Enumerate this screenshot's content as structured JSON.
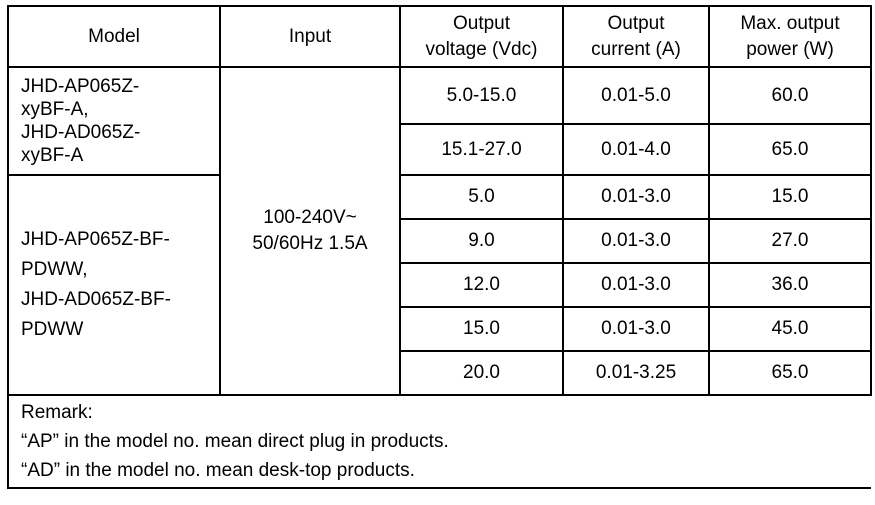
{
  "headers": [
    "Model",
    "Input",
    "Output voltage (Vdc)",
    "Output current (A)",
    "Max. output power (W)"
  ],
  "groups": [
    {
      "model": "JHD-AP065Z-xyBF-A, JHD-AD065Z-xyBF-A",
      "model_lines": [
        "JHD-AP065Z-",
        "xyBF-A,",
        "JHD-AD065Z-",
        "xyBF-A"
      ],
      "rows": [
        {
          "voltage": "5.0-15.0",
          "current": "0.01-5.0",
          "power": "60.0"
        },
        {
          "voltage": "15.1-27.0",
          "current": "0.01-4.0",
          "power": "65.0"
        }
      ]
    },
    {
      "model": "JHD-AP065Z-BF-PDWW, JHD-AD065Z-BF-PDWW",
      "model_lines": [
        "JHD-AP065Z-BF-",
        "PDWW,",
        "JHD-AD065Z-BF-",
        "PDWW"
      ],
      "rows": [
        {
          "voltage": "5.0",
          "current": "0.01-3.0",
          "power": "15.0"
        },
        {
          "voltage": "9.0",
          "current": "0.01-3.0",
          "power": "27.0"
        },
        {
          "voltage": "12.0",
          "current": "0.01-3.0",
          "power": "36.0"
        },
        {
          "voltage": "15.0",
          "current": "0.01-3.0",
          "power": "45.0"
        },
        {
          "voltage": "20.0",
          "current": "0.01-3.25",
          "power": "65.0"
        }
      ]
    }
  ],
  "input_lines": [
    "100-240V~",
    "50/60Hz 1.5A"
  ],
  "remark": [
    "Remark:",
    "“AP” in the model no. mean direct plug in products.",
    "“AD” in the model no. mean desk-top products."
  ]
}
